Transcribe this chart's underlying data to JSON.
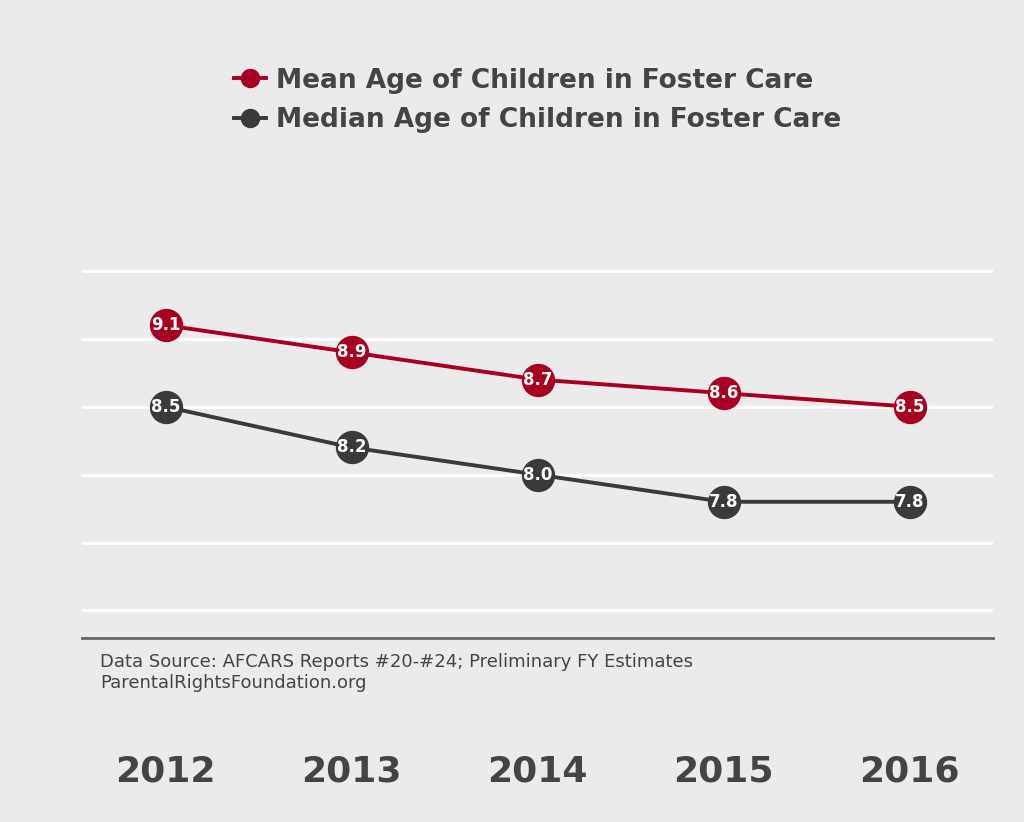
{
  "years": [
    2012,
    2013,
    2014,
    2015,
    2016
  ],
  "mean_values": [
    9.1,
    8.9,
    8.7,
    8.6,
    8.5
  ],
  "median_values": [
    8.5,
    8.2,
    8.0,
    7.8,
    7.8
  ],
  "mean_color": "#aa0020",
  "median_color": "#3a3a3a",
  "mean_label": "Mean Age of Children in Foster Care",
  "median_label": "Median Age of Children in Foster Care",
  "background_color": "#ebebeb",
  "grid_color": "#ffffff",
  "line_width": 2.8,
  "marker_size": 23,
  "tick_fontsize": 26,
  "legend_fontsize": 19,
  "annotation_fontsize": 12,
  "source_text": "Data Source: AFCARS Reports #20-#24; Preliminary FY Estimates\nParentalRightsFoundation.org",
  "source_fontsize": 13,
  "ylim": [
    6.8,
    10.2
  ],
  "text_color": "#444444"
}
